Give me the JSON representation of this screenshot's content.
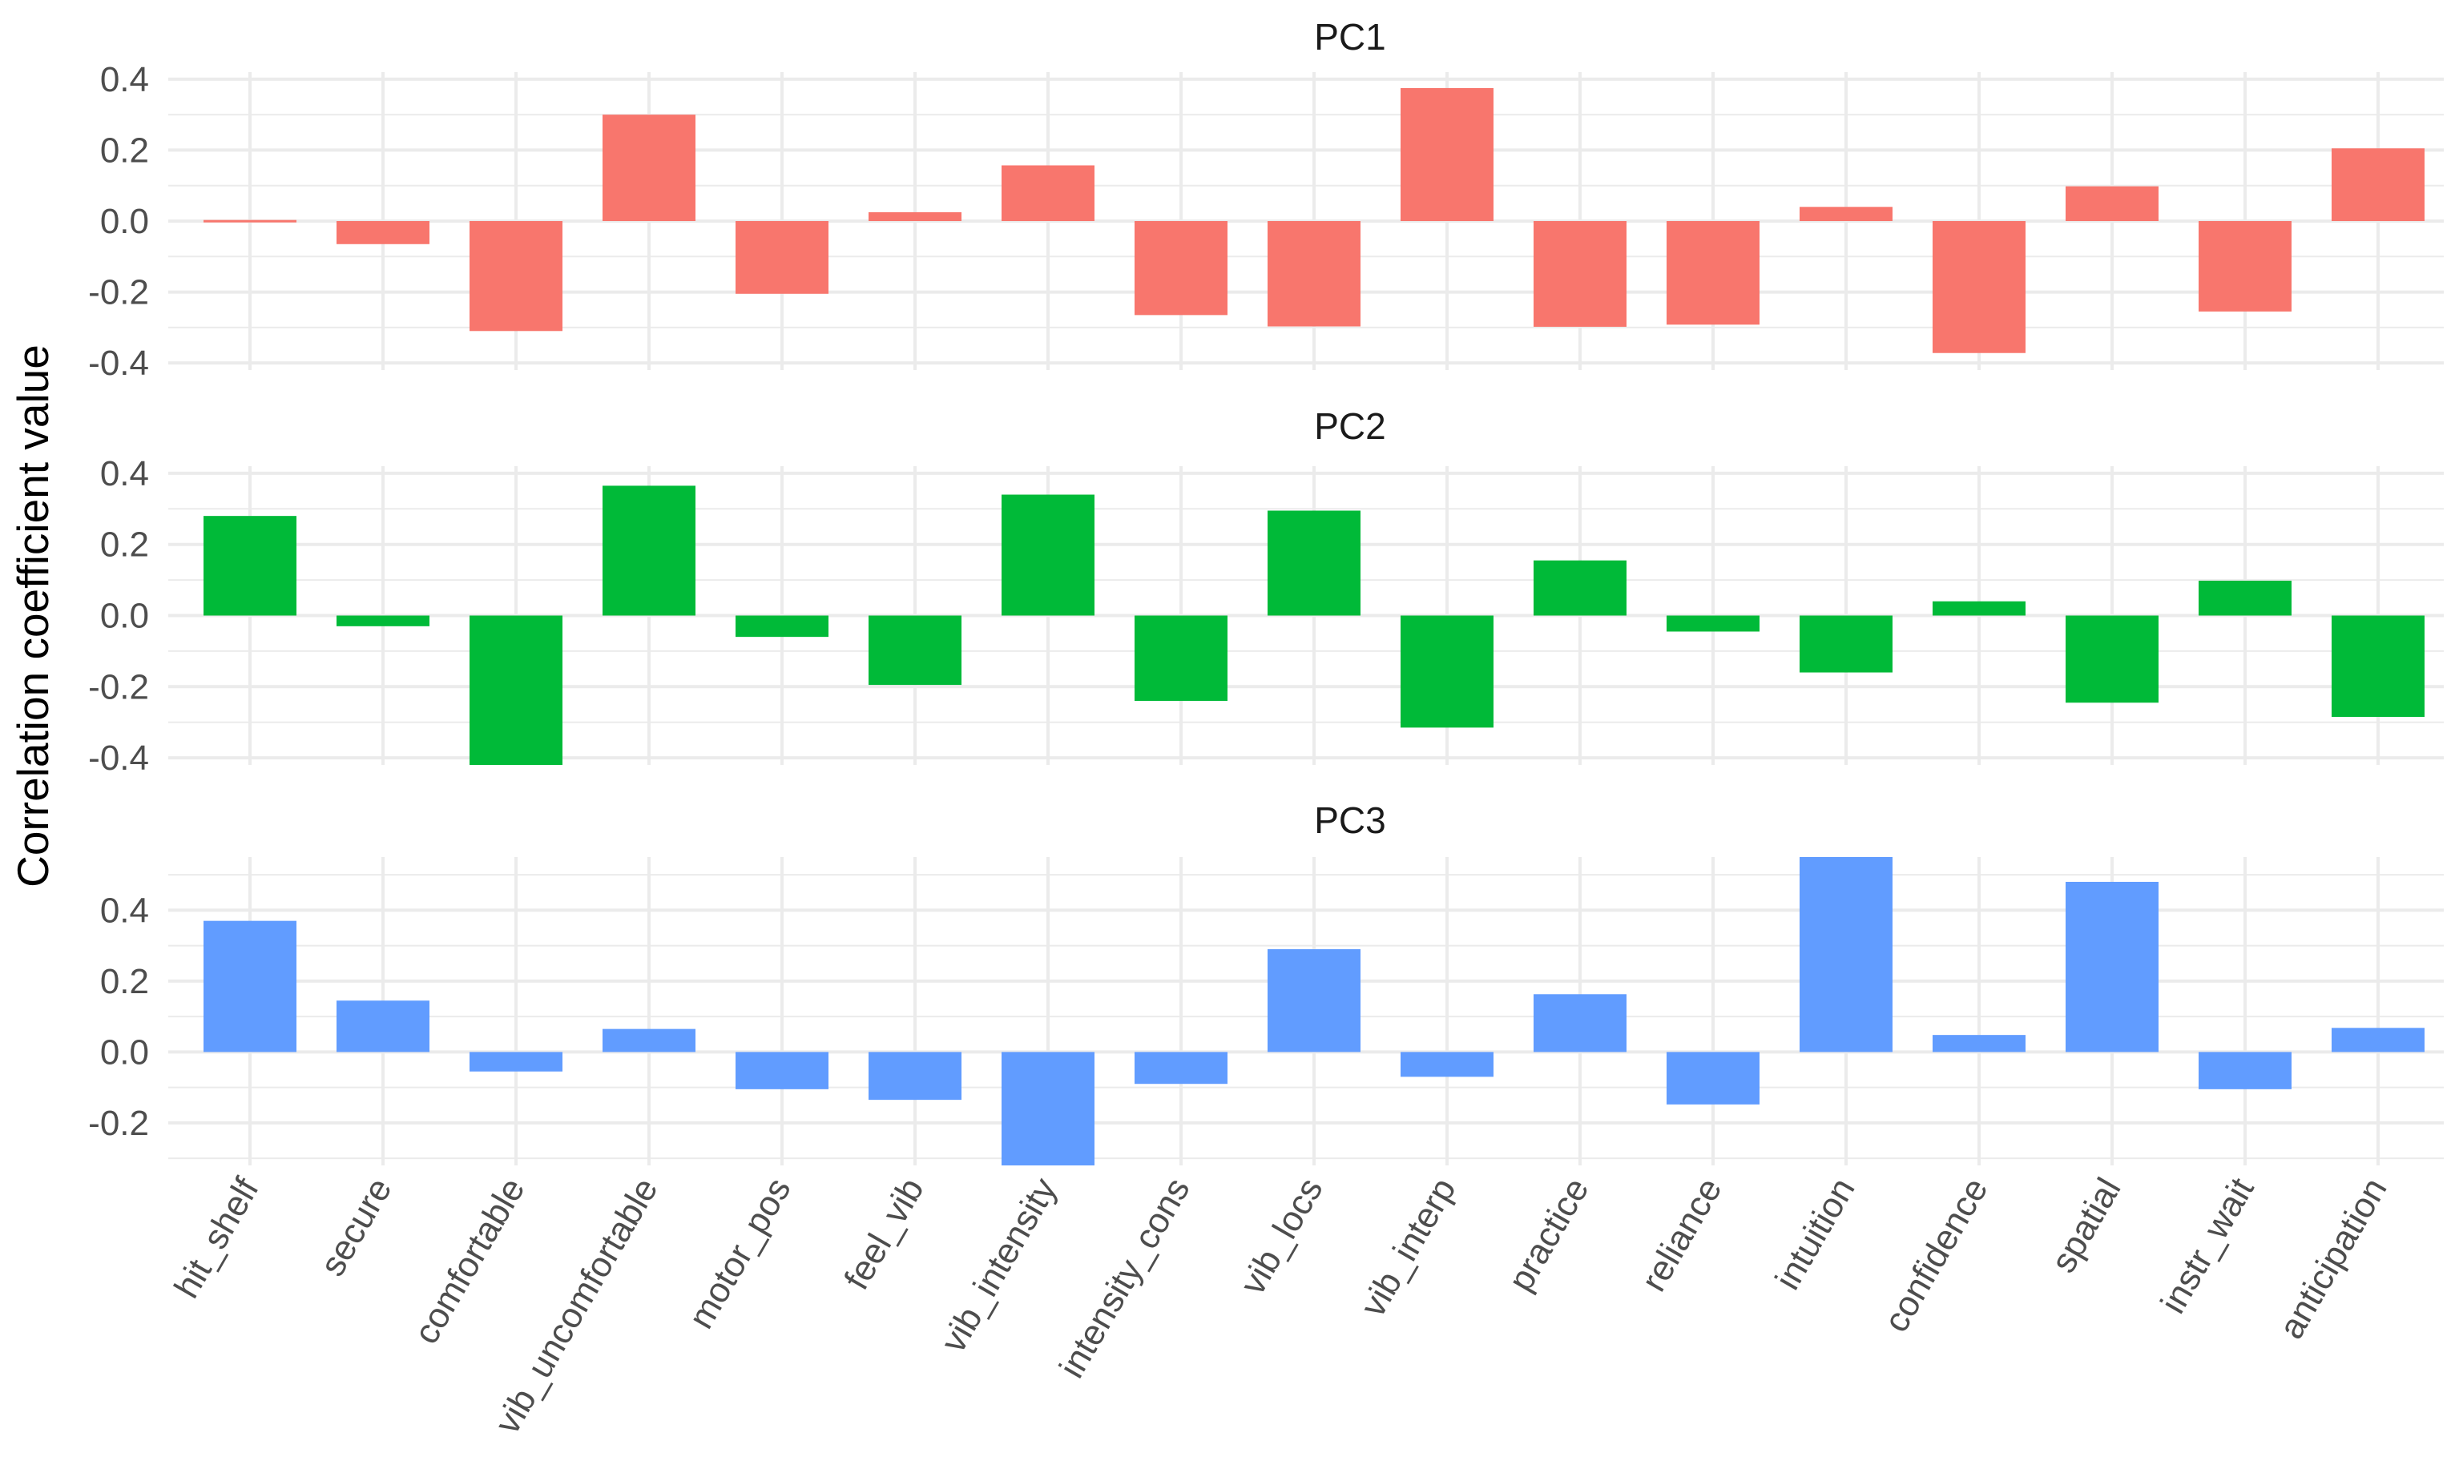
{
  "chart_data": {
    "type": "bar",
    "layout": "faceted-vertical",
    "ylabel": "Correlation coefficient value",
    "xlabel": "",
    "categories": [
      "hit_shelf",
      "secure",
      "comfortable",
      "vib_uncomfortable",
      "motor_pos",
      "feel_vib",
      "vib_intensity",
      "intensity_cons",
      "vib_locs",
      "vib_interp",
      "practice",
      "reliance",
      "intuition",
      "confidence",
      "spatial",
      "instr_wait",
      "anticipation"
    ],
    "panels": [
      {
        "name": "PC1",
        "color": "#F8766D",
        "ylim": [
          -0.42,
          0.42
        ],
        "yticks": [
          0.4,
          0.2,
          0.0,
          -0.2,
          -0.4
        ],
        "ytick_labels": [
          "0.4",
          "0.2",
          "0.0",
          "-0.2",
          "-0.4"
        ],
        "values": [
          0.003,
          -0.065,
          -0.31,
          0.3,
          -0.205,
          0.025,
          0.157,
          -0.265,
          -0.297,
          0.375,
          -0.298,
          -0.292,
          0.04,
          -0.372,
          0.098,
          -0.255,
          0.205
        ]
      },
      {
        "name": "PC2",
        "color": "#00BA38",
        "ylim": [
          -0.42,
          0.42
        ],
        "yticks": [
          0.4,
          0.2,
          0.0,
          -0.2,
          -0.4
        ],
        "ytick_labels": [
          "0.4",
          "0.2",
          "0.0",
          "-0.2",
          "-0.4"
        ],
        "values": [
          0.28,
          -0.03,
          -0.42,
          0.365,
          -0.06,
          -0.195,
          0.34,
          -0.24,
          0.295,
          -0.315,
          0.155,
          -0.045,
          -0.16,
          0.04,
          -0.245,
          0.098,
          -0.285
        ]
      },
      {
        "name": "PC3",
        "color": "#619CFF",
        "ylim": [
          -0.32,
          0.55
        ],
        "yticks": [
          0.4,
          0.2,
          0.0,
          -0.2
        ],
        "ytick_labels": [
          "0.4",
          "0.2",
          "0.0",
          "-0.2"
        ],
        "values": [
          0.37,
          0.145,
          -0.055,
          0.065,
          -0.105,
          -0.135,
          -0.32,
          -0.09,
          0.29,
          -0.07,
          0.163,
          -0.148,
          0.55,
          0.048,
          0.48,
          -0.105,
          0.068
        ]
      }
    ]
  }
}
